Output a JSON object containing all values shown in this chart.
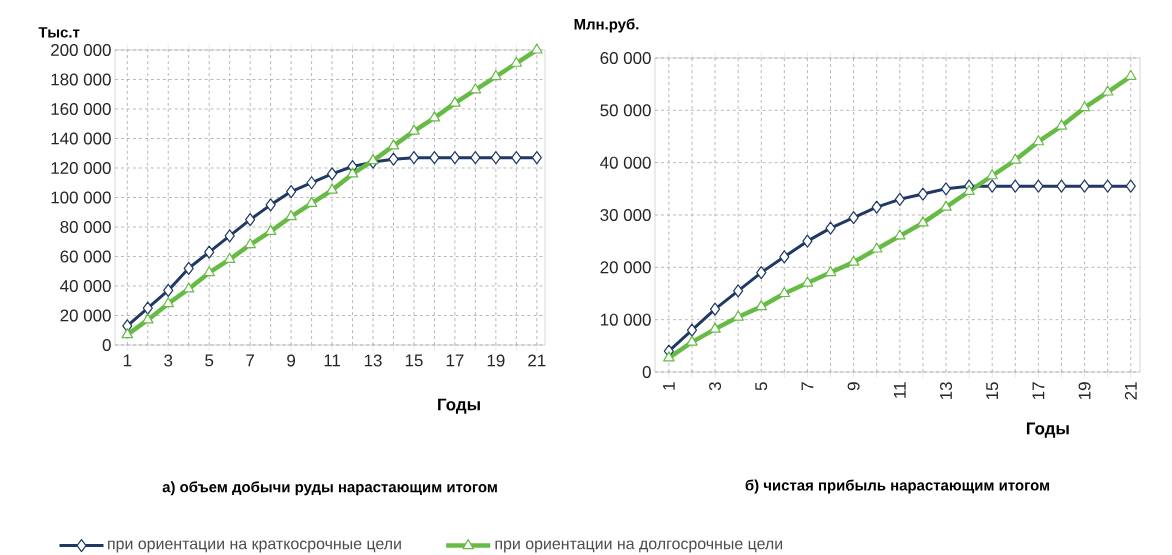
{
  "chart_data": [
    {
      "type": "line",
      "title": "а) объем добычи руды нарастающим итогом",
      "ylabel": "Тыс.т",
      "xlabel": "Годы",
      "categories": [
        "1",
        null,
        "3",
        null,
        "5",
        null,
        "7",
        null,
        "9",
        null,
        "11",
        null,
        "13",
        null,
        "15",
        null,
        "17",
        null,
        "19",
        null,
        "21"
      ],
      "ylim": [
        0,
        200000
      ],
      "yticks": [
        0,
        {
          "value": 20000,
          "label": "20 000"
        },
        {
          "value": 40000,
          "label": "40 000"
        },
        {
          "value": 60000,
          "label": "60 000"
        },
        {
          "value": 80000,
          "label": "80 000"
        },
        {
          "value": 100000,
          "label": "100 000"
        },
        {
          "value": 120000,
          "label": "120 000"
        },
        {
          "value": 140000,
          "label": "140 000"
        },
        {
          "value": 160000,
          "label": "160 000"
        },
        {
          "value": 180000,
          "label": "180 000"
        },
        {
          "value": 200000,
          "label": "200 000"
        }
      ],
      "grid": true,
      "legend": "bottom",
      "series": [
        {
          "name": "при ориентации на краткосрочные цели",
          "color": "#1f3864",
          "marker": "diamond",
          "values": [
            13000,
            25000,
            37000,
            52000,
            63000,
            74000,
            85000,
            95000,
            104000,
            110000,
            116000,
            121000,
            124000,
            126000,
            127000,
            127000,
            127000,
            127000,
            127000,
            127000,
            127000
          ]
        },
        {
          "name": "при ориентации на долгосрочные цели",
          "color": "#66bb44",
          "marker": "triangle",
          "values": [
            7000,
            17000,
            28000,
            38000,
            49000,
            58000,
            68000,
            77000,
            87000,
            96000,
            105000,
            116000,
            125000,
            135000,
            145000,
            154000,
            164000,
            173000,
            182000,
            191000,
            200000
          ]
        }
      ]
    },
    {
      "type": "line",
      "title": "б) чистая прибыль нарастающим итогом",
      "ylabel": "Млн.руб.",
      "xlabel": "Годы",
      "categories": [
        "1",
        null,
        "3",
        null,
        "5",
        null,
        "7",
        null,
        "9",
        null,
        "11",
        null,
        "13",
        null,
        "15",
        null,
        "17",
        null,
        "19",
        null,
        "21"
      ],
      "ylim": [
        0,
        60000
      ],
      "yticks": [
        0,
        {
          "value": 10000,
          "label": "10 000"
        },
        {
          "value": 20000,
          "label": "20 000"
        },
        {
          "value": 30000,
          "label": "30 000"
        },
        {
          "value": 40000,
          "label": "40 000"
        },
        {
          "value": 50000,
          "label": "50 000"
        },
        {
          "value": 60000,
          "label": "60 000"
        }
      ],
      "grid": true,
      "series": [
        {
          "color": "#1f3864",
          "marker": "diamond",
          "values": [
            4000,
            8000,
            12000,
            15500,
            19000,
            22000,
            25000,
            27500,
            29500,
            31500,
            33000,
            34000,
            35000,
            35500,
            35500,
            35500,
            35500,
            35500,
            35500,
            35500,
            35500
          ]
        },
        {
          "color": "#66bb44",
          "marker": "triangle",
          "values": [
            2700,
            5700,
            8200,
            10500,
            12500,
            15000,
            17000,
            19000,
            21000,
            23500,
            26000,
            28500,
            31500,
            34500,
            37500,
            40500,
            44000,
            47000,
            50500,
            53500,
            56500
          ]
        }
      ]
    }
  ]
}
